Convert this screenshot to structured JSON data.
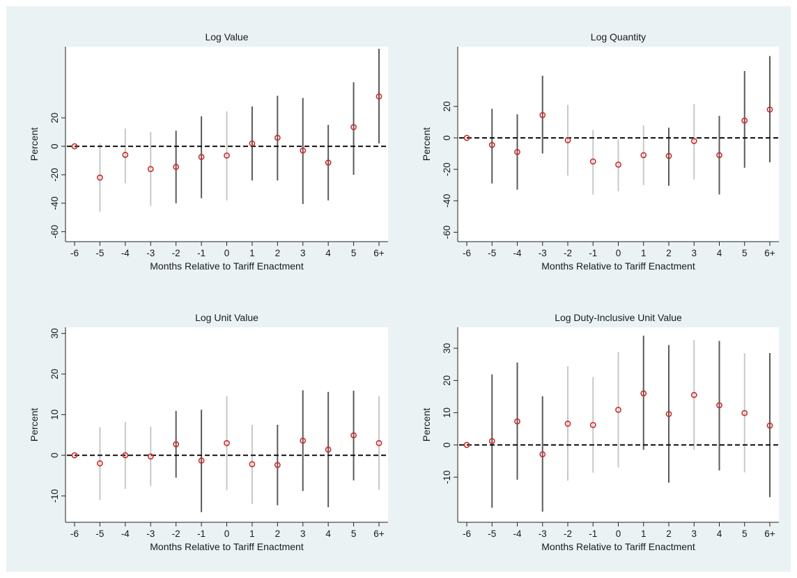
{
  "colors": {
    "figure_background": "#eaf2f3",
    "plot_background": "#ffffff",
    "point_color": "#cc2b2b",
    "ci_color_dark": "#5a5a5a",
    "ci_color_light": "#c8c8c8",
    "reference_line": "#111111"
  },
  "chart_data": [
    {
      "type": "scatter",
      "title": "Log Value",
      "xlabel": "Months Relative to Tariff Enactment",
      "ylabel": "Percent",
      "categories": [
        "-6",
        "-5",
        "-4",
        "-3",
        "-2",
        "-1",
        "0",
        "1",
        "2",
        "3",
        "4",
        "5",
        "6+"
      ],
      "values": [
        0,
        -22,
        -6,
        -16,
        -14.5,
        -7.5,
        -6.5,
        2,
        6,
        -3,
        -11.5,
        13.5,
        35
      ],
      "ci_low": [
        0,
        -46,
        -26,
        -42,
        -40,
        -36.5,
        -38,
        -24,
        -24,
        -40.5,
        -38,
        -20,
        2
      ],
      "ci_high": [
        0,
        2,
        12.5,
        10,
        11,
        21,
        24.5,
        28,
        35.5,
        34,
        15,
        45,
        68.5
      ],
      "ci_shade": [
        "dark",
        "light",
        "light",
        "light",
        "dark",
        "dark",
        "light",
        "dark",
        "dark",
        "dark",
        "dark",
        "dark",
        "dark"
      ],
      "yticks": [
        -60,
        -40,
        -20,
        0,
        20
      ],
      "ylim": [
        -67,
        70
      ],
      "reference_line_y": 0,
      "grid": false
    },
    {
      "type": "scatter",
      "title": "Log Quantity",
      "xlabel": "Months Relative to Tariff Enactment",
      "ylabel": "Percent",
      "categories": [
        "-6",
        "-5",
        "-4",
        "-3",
        "-2",
        "-1",
        "0",
        "1",
        "2",
        "3",
        "4",
        "5",
        "6+"
      ],
      "values": [
        0,
        -4.5,
        -9,
        14.5,
        -1.5,
        -15,
        -17,
        -11,
        -11.5,
        -2,
        -11,
        11,
        18
      ],
      "ci_low": [
        0,
        -29,
        -33,
        -10,
        -24,
        -36,
        -34,
        -30,
        -30.5,
        -26.5,
        -36,
        -19,
        -15.5
      ],
      "ci_high": [
        0,
        18.5,
        15,
        39.5,
        21,
        5,
        -1,
        8,
        6.5,
        21.5,
        14,
        42.5,
        52
      ],
      "ci_shade": [
        "dark",
        "dark",
        "dark",
        "dark",
        "light",
        "light",
        "light",
        "light",
        "dark",
        "light",
        "dark",
        "dark",
        "dark"
      ],
      "yticks": [
        -60,
        -40,
        -20,
        0,
        20
      ],
      "ylim": [
        -66,
        58
      ],
      "reference_line_y": 0,
      "grid": false
    },
    {
      "type": "scatter",
      "title": "Log Unit Value",
      "xlabel": "Months Relative to Tariff Enactment",
      "ylabel": "Percent",
      "categories": [
        "-6",
        "-5",
        "-4",
        "-3",
        "-2",
        "-1",
        "0",
        "1",
        "2",
        "3",
        "4",
        "5",
        "6+"
      ],
      "values": [
        0,
        -2,
        0,
        -0.3,
        2.7,
        -1.3,
        3,
        -2.2,
        -2.4,
        3.6,
        1.4,
        4.9,
        3
      ],
      "ci_low": [
        0,
        -11,
        -8.3,
        -7.6,
        -5.5,
        -14,
        -8.6,
        -12,
        -12.3,
        -8.8,
        -12.8,
        -6.2,
        -8.5
      ],
      "ci_high": [
        0,
        6.9,
        8.2,
        7.1,
        10.9,
        11.2,
        14.5,
        7.5,
        7.5,
        16,
        15.6,
        15.9,
        14.5
      ],
      "ci_shade": [
        "dark",
        "light",
        "light",
        "light",
        "dark",
        "dark",
        "light",
        "light",
        "dark",
        "dark",
        "dark",
        "dark",
        "light"
      ],
      "yticks": [
        -10,
        0,
        10,
        20,
        30
      ],
      "ylim": [
        -16.5,
        31.5
      ],
      "reference_line_y": 0,
      "grid": false
    },
    {
      "type": "scatter",
      "title": "Log Duty-Inclusive Unit Value",
      "xlabel": "Months Relative to Tariff Enactment",
      "ylabel": "Percent",
      "categories": [
        "-6",
        "-5",
        "-4",
        "-3",
        "-2",
        "-1",
        "0",
        "1",
        "2",
        "3",
        "4",
        "5",
        "6+"
      ],
      "values": [
        0,
        1.2,
        7.3,
        -2.9,
        6.6,
        6.2,
        10.9,
        16,
        9.6,
        15.5,
        12.3,
        9.9,
        6
      ],
      "ci_low": [
        0,
        -19.5,
        -10.8,
        -20.7,
        -11.1,
        -8.6,
        -7,
        -1.5,
        -11.7,
        -1.5,
        -7.9,
        -8.5,
        -16.2
      ],
      "ci_high": [
        0,
        21.9,
        25.6,
        15.1,
        24.4,
        21.1,
        28.8,
        33.9,
        31,
        32.6,
        32.3,
        28.5,
        28.5
      ],
      "ci_shade": [
        "dark",
        "dark",
        "dark",
        "dark",
        "light",
        "light",
        "light",
        "dark",
        "dark",
        "light",
        "dark",
        "light",
        "dark"
      ],
      "yticks": [
        -10,
        0,
        10,
        20,
        30
      ],
      "ylim": [
        -24,
        36.5
      ],
      "reference_line_y": 0,
      "grid": false
    }
  ]
}
